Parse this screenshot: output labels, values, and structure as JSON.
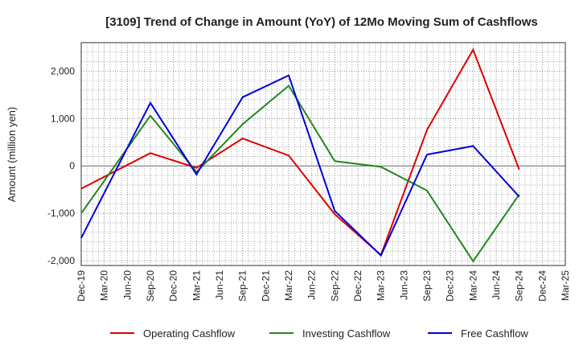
{
  "chart_data": {
    "type": "line",
    "title": "[3109]  Trend of Change in Amount (YoY) of 12Mo Moving Sum of Cashflows",
    "xlabel": "",
    "ylabel": "Amount (million yen)",
    "ylim": [
      -2100,
      2600
    ],
    "yticks": [
      -2000,
      -1000,
      0,
      1000,
      2000
    ],
    "ytick_labels": [
      "-2,000",
      "-1,000",
      "0",
      "1,000",
      "2,000"
    ],
    "categories": [
      "Dec-19",
      "Mar-20",
      "Jun-20",
      "Sep-20",
      "Dec-20",
      "Mar-21",
      "Jun-21",
      "Sep-21",
      "Dec-21",
      "Mar-22",
      "Jun-22",
      "Sep-22",
      "Dec-22",
      "Mar-23",
      "Jun-23",
      "Sep-23",
      "Dec-23",
      "Mar-24",
      "Jun-24",
      "Sep-24",
      "Dec-24",
      "Mar-25"
    ],
    "grid": true,
    "legend_position": "bottom",
    "series": [
      {
        "name": "Operating Cashflow",
        "color": "#dd0000",
        "x": [
          "Dec-19",
          "Sep-20",
          "Mar-21",
          "Sep-21",
          "Mar-22",
          "Sep-22",
          "Mar-23",
          "Sep-23",
          "Mar-24",
          "Sep-24"
        ],
        "values": [
          -480,
          270,
          -40,
          580,
          220,
          -1020,
          -1880,
          760,
          2450,
          -80
        ]
      },
      {
        "name": "Investing Cashflow",
        "color": "#228822",
        "x": [
          "Dec-19",
          "Sep-20",
          "Mar-21",
          "Sep-21",
          "Mar-22",
          "Sep-22",
          "Mar-23",
          "Sep-23",
          "Mar-24",
          "Sep-24"
        ],
        "values": [
          -1000,
          1060,
          -130,
          880,
          1690,
          100,
          -20,
          -520,
          -2010,
          -600
        ]
      },
      {
        "name": "Free Cashflow",
        "color": "#0000dd",
        "x": [
          "Dec-19",
          "Sep-20",
          "Mar-21",
          "Sep-21",
          "Mar-22",
          "Sep-22",
          "Mar-23",
          "Sep-23",
          "Mar-24",
          "Sep-24"
        ],
        "values": [
          -1520,
          1330,
          -180,
          1450,
          1910,
          -950,
          -1890,
          240,
          420,
          -650
        ]
      }
    ]
  }
}
